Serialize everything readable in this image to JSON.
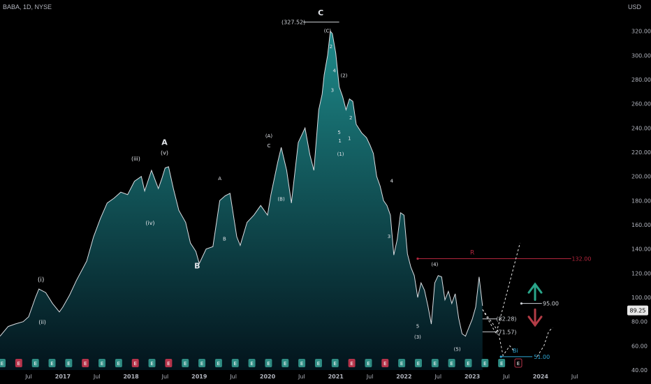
{
  "header": {
    "symbol": "BABA, 1D, NYSE",
    "currency": "USD"
  },
  "colors": {
    "area_top": "#1e8a8a",
    "area_bottom": "#03141c",
    "line": "#d9dde2",
    "resistance": "#b3263d",
    "support": "#2fa8d6",
    "up_arrow": "#2aa58a",
    "down_arrow": "#b33c46",
    "event_badge_e": "#2e8c83",
    "event_badge_red": "#b5334a"
  },
  "chart_data": {
    "type": "area",
    "title": "",
    "xlabel": "",
    "ylabel": "",
    "ylim": [
      40,
      340
    ],
    "y_ticks": [
      40,
      60,
      80,
      100,
      120,
      140,
      160,
      180,
      200,
      220,
      240,
      260,
      280,
      300,
      320
    ],
    "x_tick_labels": [
      "Jul",
      "2017",
      "Jul",
      "2018",
      "Jul",
      "2019",
      "Jul",
      "2020",
      "Jul",
      "2021",
      "Jul",
      "2022",
      "Jul",
      "2023",
      "Jul",
      "2024",
      "Jul"
    ],
    "x_ticks": [
      2016.5,
      2017.0,
      2017.5,
      2018.0,
      2018.5,
      2019.0,
      2019.5,
      2020.0,
      2020.5,
      2021.0,
      2021.5,
      2022.0,
      2022.5,
      2023.0,
      2023.5,
      2024.0,
      2024.5
    ],
    "x_range": [
      2016.08,
      2024.8
    ],
    "series": [
      {
        "x": [
          2016.08,
          2016.2,
          2016.3,
          2016.42,
          2016.5,
          2016.6,
          2016.65,
          2016.75,
          2016.85,
          2016.95,
          2017.0,
          2017.1,
          2017.2,
          2017.35,
          2017.45,
          2017.55,
          2017.65,
          2017.75,
          2017.85,
          2017.95,
          2018.05,
          2018.15,
          2018.2,
          2018.3,
          2018.4,
          2018.45,
          2018.5,
          2018.55,
          2018.62,
          2018.7,
          2018.8,
          2018.87,
          2018.95,
          2019.0,
          2019.1,
          2019.2,
          2019.3,
          2019.38,
          2019.45,
          2019.55,
          2019.6,
          2019.7,
          2019.8,
          2019.9,
          2020.0,
          2020.05,
          2020.15,
          2020.2,
          2020.28,
          2020.35,
          2020.45,
          2020.55,
          2020.62,
          2020.68,
          2020.75,
          2020.8,
          2020.83,
          2020.88,
          2020.92,
          2020.95,
          2021.0,
          2021.05,
          2021.1,
          2021.15,
          2021.2,
          2021.25,
          2021.3,
          2021.38,
          2021.45,
          2021.5,
          2021.55,
          2021.6,
          2021.65,
          2021.7,
          2021.75,
          2021.8,
          2021.85,
          2021.9,
          2021.95,
          2022.0,
          2022.05,
          2022.1,
          2022.15,
          2022.2,
          2022.25,
          2022.3,
          2022.35,
          2022.4,
          2022.45,
          2022.5,
          2022.55,
          2022.6,
          2022.65,
          2022.7,
          2022.75,
          2022.8,
          2022.85,
          2022.9,
          2022.95,
          2023.0,
          2023.05,
          2023.1,
          2023.15
        ],
        "y": [
          68,
          76,
          78,
          80,
          84,
          100,
          107,
          104,
          95,
          88,
          92,
          102,
          114,
          130,
          150,
          165,
          178,
          182,
          187,
          185,
          196,
          200,
          188,
          205,
          190,
          198,
          207,
          208,
          190,
          172,
          162,
          145,
          138,
          128,
          140,
          142,
          180,
          184,
          186,
          150,
          143,
          162,
          168,
          176,
          168,
          185,
          212,
          224,
          205,
          178,
          228,
          240,
          218,
          205,
          255,
          268,
          284,
          300,
          320,
          318,
          302,
          274,
          266,
          255,
          264,
          262,
          243,
          236,
          232,
          226,
          219,
          200,
          192,
          180,
          176,
          168,
          135,
          148,
          170,
          168,
          136,
          125,
          118,
          100,
          112,
          106,
          93,
          78,
          112,
          118,
          117,
          98,
          105,
          95,
          103,
          83,
          70,
          68,
          75,
          82,
          92,
          117,
          93
        ]
      }
    ],
    "current_price": "89.25",
    "annotations": {
      "peak_value": "(327.52)",
      "level_r": "R",
      "level_r_value": "132.00",
      "level_95": "95.00",
      "level_8228": "(82.28)",
      "level_7157": "(71.57)",
      "level_bi": "Bi",
      "level_51": "51.00",
      "wave_labels": [
        "(i)",
        "(ii)",
        "(iii)",
        "(iv)",
        "(v)",
        "A",
        "B",
        "C",
        "(A)",
        "(B)",
        "(C)",
        "C",
        "B",
        "A",
        "(1)",
        "(2)",
        "(3)",
        "(4)",
        "(5)",
        "1",
        "2",
        "3",
        "4",
        "5",
        "2",
        "1",
        "4",
        "3",
        "5"
      ]
    },
    "events": [
      "E",
      "E",
      "E",
      "E",
      "E",
      "E",
      "E",
      "E",
      "E",
      "E",
      "E",
      "E",
      "E",
      "E",
      "E",
      "E",
      "E",
      "E",
      "E",
      "E",
      "E",
      "E",
      "E",
      "E",
      "E",
      "E",
      "E",
      "E",
      "E",
      "E",
      "E",
      "E"
    ]
  }
}
